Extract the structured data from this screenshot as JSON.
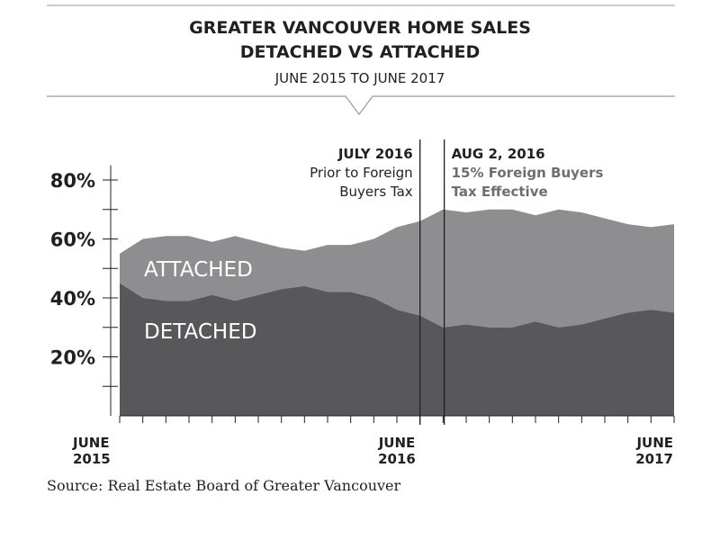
{
  "header": {
    "title_line1": "GREATER VANCOUVER HOME SALES",
    "title_line2": "DETACHED VS ATTACHED",
    "subtitle": "JUNE 2015 TO JUNE 2017"
  },
  "colors": {
    "detached": "#58585a",
    "attached": "#8e8d8f",
    "text": "#231f20",
    "annotation_right": "#6d6e70"
  },
  "chart_data": {
    "type": "area",
    "stacked": true,
    "x": [
      "Jun 2015",
      "Jul 2015",
      "Aug 2015",
      "Sep 2015",
      "Oct 2015",
      "Nov 2015",
      "Dec 2015",
      "Jan 2016",
      "Feb 2016",
      "Mar 2016",
      "Apr 2016",
      "May 2016",
      "Jun 2016",
      "Jul 2016",
      "Aug 2016",
      "Sep 2016",
      "Oct 2016",
      "Nov 2016",
      "Dec 2016",
      "Jan 2017",
      "Feb 2017",
      "Mar 2017",
      "Apr 2017",
      "May 2017",
      "Jun 2017"
    ],
    "x_tick_labels": [
      {
        "index": 0,
        "line1": "JUNE",
        "line2": "2015"
      },
      {
        "index": 12,
        "line1": "JUNE",
        "line2": "2016"
      },
      {
        "index": 24,
        "line1": "JUNE",
        "line2": "2017"
      }
    ],
    "series": [
      {
        "name": "DETACHED",
        "values": [
          45,
          40,
          39,
          39,
          41,
          39,
          41,
          43,
          44,
          42,
          42,
          40,
          36,
          34,
          30,
          31,
          30,
          30,
          32,
          30,
          31,
          33,
          35,
          36,
          35
        ]
      },
      {
        "name": "ATTACHED",
        "values": [
          10,
          20,
          22,
          22,
          18,
          22,
          18,
          14,
          12,
          16,
          16,
          20,
          28,
          32,
          40,
          38,
          40,
          40,
          36,
          40,
          38,
          34,
          30,
          28,
          30
        ]
      }
    ],
    "totals": [
      55,
      60,
      61,
      61,
      59,
      61,
      59,
      57,
      56,
      58,
      58,
      60,
      64,
      66,
      70,
      69,
      70,
      70,
      68,
      70,
      69,
      67,
      65,
      64,
      65
    ],
    "y_ticks": [
      20,
      40,
      60,
      80
    ],
    "y_tick_labels": [
      "20%",
      "40%",
      "60%",
      "80%"
    ],
    "ylim": [
      0,
      80
    ],
    "annotations": [
      {
        "x": "Jul 2016",
        "position": 13,
        "lines": [
          "JULY 2016",
          "Prior to Foreign",
          "Buyers Tax"
        ]
      },
      {
        "x": "Aug 2, 2016",
        "position": 14.05,
        "lines": [
          "AUG 2, 2016",
          "15% Foreign Buyers",
          "Tax Effective"
        ]
      }
    ]
  },
  "source": "Source: Real Estate Board of Greater Vancouver"
}
